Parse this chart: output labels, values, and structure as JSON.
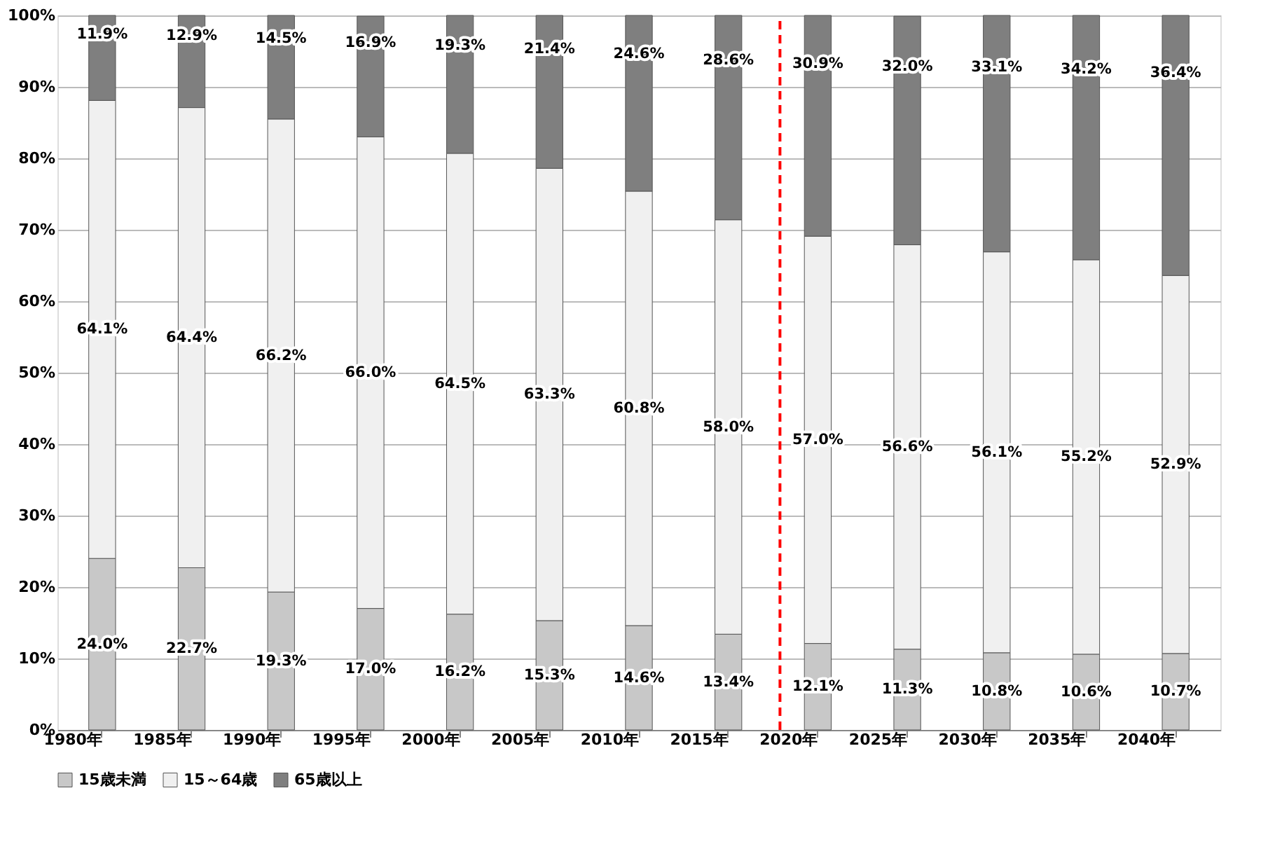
{
  "chart_data": {
    "type": "bar",
    "stacked": true,
    "categories": [
      "1980年",
      "1985年",
      "1990年",
      "1995年",
      "2000年",
      "2005年",
      "2010年",
      "2015年",
      "2020年",
      "2025年",
      "2030年",
      "2035年",
      "2040年"
    ],
    "series": [
      {
        "name": "15歳未満",
        "color": "#c8c8c8",
        "values": [
          24.0,
          22.7,
          19.3,
          17.0,
          16.2,
          15.3,
          14.6,
          13.4,
          12.1,
          11.3,
          10.8,
          10.6,
          10.7
        ],
        "value_labels": [
          "24.0%",
          "22.7%",
          "19.3%",
          "17.0%",
          "16.2%",
          "15.3%",
          "14.6%",
          "13.4%",
          "12.1%",
          "11.3%",
          "10.8%",
          "10.6%",
          "10.7%"
        ]
      },
      {
        "name": "15～64歳",
        "color": "#f0f0f0",
        "values": [
          64.1,
          64.4,
          66.2,
          66.0,
          64.5,
          63.3,
          60.8,
          58.0,
          57.0,
          56.6,
          56.1,
          55.2,
          52.9
        ],
        "value_labels": [
          "64.1%",
          "64.4%",
          "66.2%",
          "66.0%",
          "64.5%",
          "63.3%",
          "60.8%",
          "58.0%",
          "57.0%",
          "56.6%",
          "56.1%",
          "55.2%",
          "52.9%"
        ]
      },
      {
        "name": "65歳以上",
        "color": "#7f7f7f",
        "values": [
          11.9,
          12.9,
          14.5,
          16.9,
          19.3,
          21.4,
          24.6,
          28.6,
          30.9,
          32.0,
          33.1,
          34.2,
          36.4
        ],
        "value_labels": [
          "11.9%",
          "12.9%",
          "14.5%",
          "16.9%",
          "19.3%",
          "21.4%",
          "24.6%",
          "28.6%",
          "30.9%",
          "32.0%",
          "33.1%",
          "34.2%",
          "36.4%"
        ]
      }
    ],
    "ylim": [
      0,
      100
    ],
    "yticks": [
      {
        "value": 0,
        "label": "0%"
      },
      {
        "value": 10,
        "label": "10%"
      },
      {
        "value": 20,
        "label": "20%"
      },
      {
        "value": 30,
        "label": "30%"
      },
      {
        "value": 40,
        "label": "40%"
      },
      {
        "value": 50,
        "label": "50%"
      },
      {
        "value": 60,
        "label": "60%"
      },
      {
        "value": 70,
        "label": "70%"
      },
      {
        "value": 80,
        "label": "80%"
      },
      {
        "value": 90,
        "label": "90%"
      },
      {
        "value": 100,
        "label": "100%"
      }
    ],
    "ref_lines": [
      {
        "axis": "x",
        "value": "2020年",
        "color": "#ff0000",
        "line_style": "dashed"
      }
    ],
    "grid": true,
    "legend": "bottom"
  }
}
